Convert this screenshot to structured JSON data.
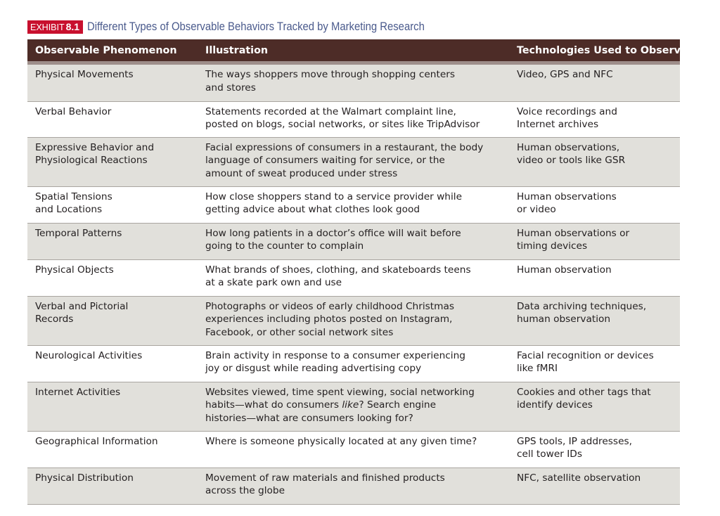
{
  "exhibit": {
    "label": "EXHIBIT",
    "number": "8.1",
    "title": "Different Types of Observable Behaviors Tracked by Marketing Research"
  },
  "table": {
    "headers": [
      "Observable Phenomenon",
      "Illustration",
      "Technologies Used to Observe"
    ],
    "rows": [
      {
        "phenomenon": [
          "Physical Movements"
        ],
        "illustration": [
          "The ways shoppers move through shopping centers",
          "and stores"
        ],
        "technologies": [
          "Video, GPS and NFC"
        ]
      },
      {
        "phenomenon": [
          "Verbal Behavior"
        ],
        "illustration": [
          "Statements recorded at the Walmart complaint line,",
          "posted on blogs, social networks, or sites like TripAdvisor"
        ],
        "technologies": [
          "Voice recordings and",
          "Internet archives"
        ]
      },
      {
        "phenomenon": [
          "Expressive Behavior and",
          "Physiological Reactions"
        ],
        "illustration": [
          "Facial expressions of consumers in a restaurant, the body",
          "language of consumers waiting for service, or the",
          "amount of sweat produced under stress"
        ],
        "technologies": [
          "Human observations,",
          "video or tools like GSR"
        ]
      },
      {
        "phenomenon": [
          "Spatial Tensions",
          "and Locations"
        ],
        "illustration": [
          "How close shoppers stand to a service provider while",
          "getting advice about what clothes look good"
        ],
        "technologies": [
          "Human observations",
          "or video"
        ]
      },
      {
        "phenomenon": [
          "Temporal Patterns"
        ],
        "illustration": [
          "How long patients in a doctor’s office will wait before",
          "going to the counter to complain"
        ],
        "technologies": [
          "Human observations or",
          "timing devices"
        ]
      },
      {
        "phenomenon": [
          "Physical Objects"
        ],
        "illustration": [
          "What brands of shoes, clothing, and skateboards teens",
          "at a skate park own and use"
        ],
        "technologies": [
          "Human observation"
        ]
      },
      {
        "phenomenon": [
          "Verbal and Pictorial",
          "Records"
        ],
        "illustration": [
          "Photographs or videos of early childhood Christmas",
          "experiences including photos posted on Instagram,",
          "Facebook, or other social network sites"
        ],
        "technologies": [
          "Data archiving techniques,",
          "human observation"
        ]
      },
      {
        "phenomenon": [
          "Neurological Activities"
        ],
        "illustration": [
          "Brain activity in response to a consumer experiencing",
          "joy or disgust while reading advertising copy"
        ],
        "technologies": [
          "Facial recognition or devices",
          "like fMRI"
        ]
      },
      {
        "phenomenon": [
          "Internet Activities"
        ],
        "illustration": [
          "Websites viewed, time spent viewing, social networking",
          "habits—what do consumers like? Search engine",
          "histories—what are consumers looking for?"
        ],
        "technologies": [
          "Cookies and other tags that",
          "identify devices"
        ]
      },
      {
        "phenomenon": [
          "Geographical Information"
        ],
        "illustration": [
          "Where is someone physically located at any given time?"
        ],
        "technologies": [
          "GPS tools, IP addresses,",
          "cell tower IDs"
        ]
      },
      {
        "phenomenon": [
          "Physical Distribution"
        ],
        "illustration": [
          "Movement of raw materials and finished products",
          "across the globe"
        ],
        "technologies": [
          "NFC, satellite observation"
        ]
      }
    ]
  }
}
